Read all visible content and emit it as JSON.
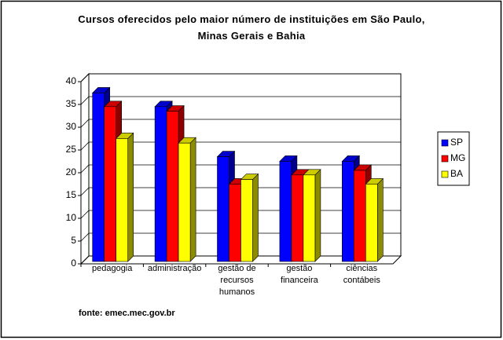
{
  "chart_data": {
    "type": "bar3d",
    "title": "Cursos oferecidos pelo maior número de instituições em São Paulo, Minas Gerais e Bahia",
    "categories": [
      "pedagogia",
      "administração",
      "gestão de recursos humanos",
      "gestão financeira",
      "ciências contábeis"
    ],
    "series": [
      {
        "name": "SP",
        "color": "#0000ff",
        "values": [
          37,
          34,
          23,
          22,
          22
        ]
      },
      {
        "name": "MG",
        "color": "#ff0000",
        "values": [
          34,
          33,
          17,
          19,
          20
        ]
      },
      {
        "name": "BA",
        "color": "#ffff00",
        "values": [
          27,
          26,
          18,
          19,
          17
        ]
      }
    ],
    "ylim": [
      0,
      40
    ],
    "yticks": [
      0,
      5,
      10,
      15,
      20,
      25,
      30,
      35,
      40
    ],
    "grid": true,
    "legend": "right",
    "source": "fonte: emec.mec.gov.br"
  }
}
